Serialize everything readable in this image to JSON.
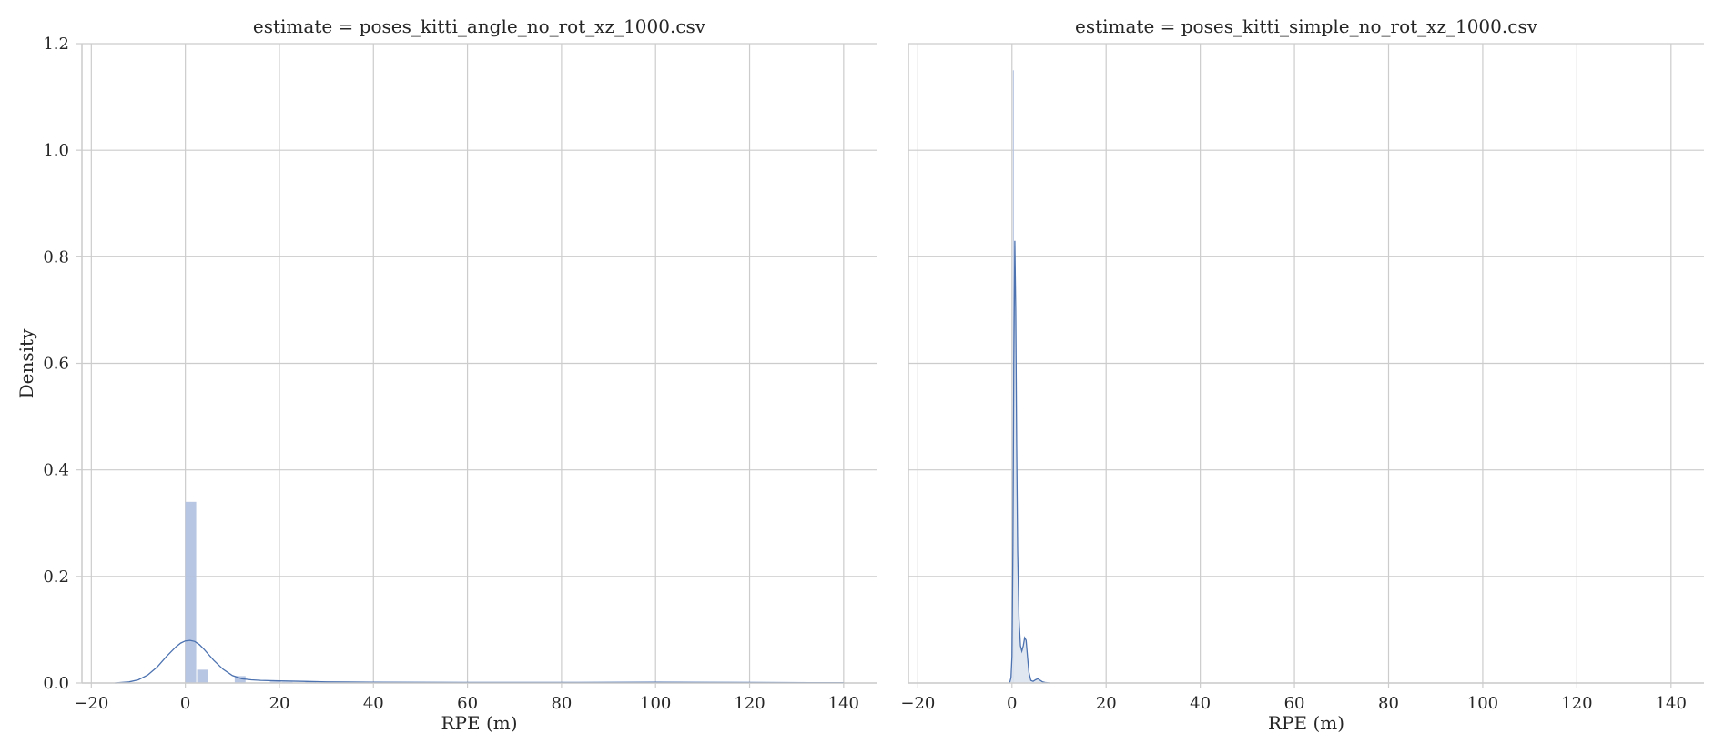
{
  "chart_data": {
    "type": "histogram-kde-facets",
    "ylabel": "Density",
    "xlabel": "RPE (m)",
    "xlim": [
      -22,
      147
    ],
    "ylim": [
      0,
      1.2
    ],
    "xticks": [
      -20,
      0,
      20,
      40,
      60,
      80,
      100,
      120,
      140
    ],
    "xtick_labels": [
      "−20",
      "0",
      "20",
      "40",
      "60",
      "80",
      "100",
      "120",
      "140"
    ],
    "yticks": [
      0.0,
      0.2,
      0.4,
      0.6,
      0.8,
      1.0,
      1.2
    ],
    "ytick_labels": [
      "0.0",
      "0.2",
      "0.4",
      "0.6",
      "0.8",
      "1.0",
      "1.2"
    ],
    "grid": true,
    "colors": {
      "hist": "#b3c3e0",
      "kde": "#4c72b0",
      "kde_fill": "#dde4f0",
      "grid": "#cccccc",
      "axis": "#cccccc",
      "text": "#262626"
    },
    "panels": [
      {
        "title": "estimate = poses_kitti_angle_no_rot_xz_1000.csv",
        "histogram": {
          "bins": [
            {
              "x0": 0.0,
              "x1": 2.5,
              "density": 0.34
            },
            {
              "x0": 2.5,
              "x1": 5.0,
              "density": 0.025
            },
            {
              "x0": 10.5,
              "x1": 13.0,
              "density": 0.013
            },
            {
              "x0": 18.0,
              "x1": 20.5,
              "density": 0.003
            },
            {
              "x0": 20.5,
              "x1": 23.0,
              "density": 0.002
            },
            {
              "x0": 25.5,
              "x1": 28.0,
              "density": 0.003
            },
            {
              "x0": 104.0,
              "x1": 106.5,
              "density": 0.002
            },
            {
              "x0": 124.5,
              "x1": 127.0,
              "density": 0.001
            }
          ]
        },
        "kde": {
          "filled": false,
          "x": [
            -15,
            -12,
            -10,
            -8,
            -6,
            -4,
            -2,
            -1,
            0,
            1,
            2,
            3,
            4,
            5,
            6,
            8,
            10,
            12,
            14,
            16,
            20,
            25,
            30,
            40,
            60,
            80,
            100,
            120,
            140
          ],
          "y": [
            0.0,
            0.002,
            0.006,
            0.015,
            0.03,
            0.05,
            0.068,
            0.075,
            0.079,
            0.08,
            0.078,
            0.072,
            0.063,
            0.053,
            0.043,
            0.026,
            0.014,
            0.008,
            0.006,
            0.005,
            0.004,
            0.003,
            0.002,
            0.0015,
            0.001,
            0.001,
            0.0015,
            0.001,
            0.0005
          ]
        }
      },
      {
        "title": "estimate = poses_kitti_simple_no_rot_xz_1000.csv",
        "histogram": {
          "bins": [
            {
              "x0": 0.2,
              "x1": 0.6,
              "density": 1.15
            }
          ]
        },
        "kde": {
          "filled": true,
          "x": [
            -0.5,
            -0.2,
            0.0,
            0.2,
            0.4,
            0.6,
            0.8,
            1.0,
            1.2,
            1.5,
            1.8,
            2.1,
            2.4,
            2.7,
            3.0,
            3.3,
            3.6,
            4.0,
            4.5,
            5.0,
            5.5,
            6.0,
            6.5,
            7.0,
            8.0
          ],
          "y": [
            0.0,
            0.01,
            0.05,
            0.25,
            0.6,
            0.83,
            0.7,
            0.45,
            0.25,
            0.12,
            0.07,
            0.06,
            0.07,
            0.085,
            0.08,
            0.05,
            0.02,
            0.005,
            0.003,
            0.006,
            0.008,
            0.005,
            0.002,
            0.001,
            0.0
          ]
        }
      }
    ]
  }
}
